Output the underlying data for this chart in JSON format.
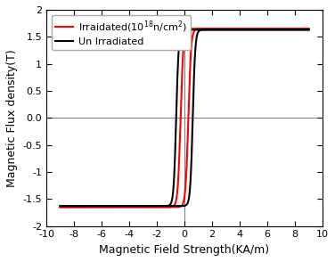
{
  "title": "",
  "xlabel": "Magnetic Field Strength(KA/m)",
  "ylabel": "Magnetic Flux density(T)",
  "xlim": [
    -10,
    10
  ],
  "ylim": [
    -2.0,
    2.0
  ],
  "xticks": [
    -10,
    -8,
    -6,
    -4,
    -2,
    0,
    2,
    4,
    6,
    8,
    10
  ],
  "yticks": [
    -2.0,
    -1.5,
    -1.0,
    -0.5,
    0.0,
    0.5,
    1.0,
    1.5,
    2.0
  ],
  "legend": [
    "Un Irradiated",
    "Irraidated(10$^{18}$n/cm$^2$)"
  ],
  "line_colors": [
    "black",
    "red"
  ],
  "line_width": 1.5,
  "Bs_black": 1.63,
  "Bs_red": 1.65,
  "Hc_black": 0.6,
  "Hc_red": 0.28,
  "k_black": 5.5,
  "k_red": 5.0,
  "x_min_data": -9.0,
  "x_max_data": 9.0,
  "vline_color": "gray",
  "hline_color": "gray",
  "vline_lw": 0.8,
  "hline_lw": 0.8,
  "xlabel_fontsize": 9,
  "ylabel_fontsize": 9,
  "tick_fontsize": 8,
  "legend_fontsize": 8
}
